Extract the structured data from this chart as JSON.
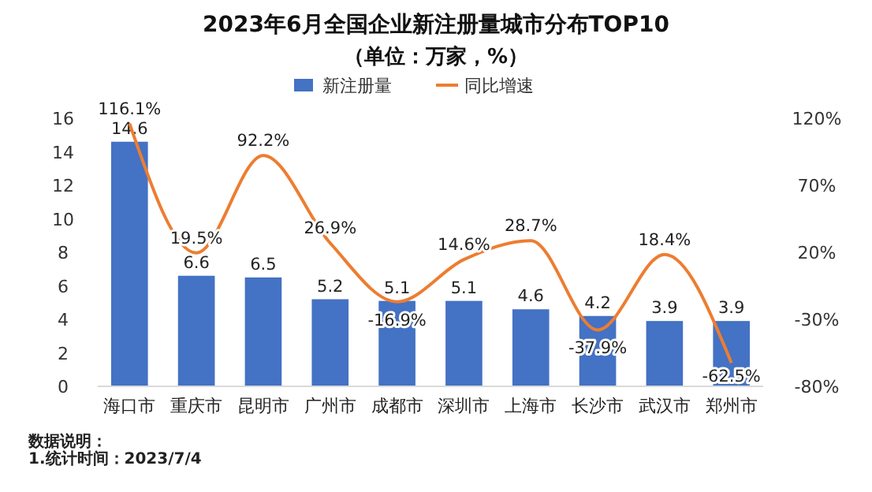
{
  "chart_data": {
    "type": "bar",
    "title": "2023年6月全国企业新注册量城市分布TOP10",
    "subtitle": "（单位：万家，%）",
    "categories": [
      "海口市",
      "重庆市",
      "昆明市",
      "广州市",
      "成都市",
      "深圳市",
      "上海市",
      "长沙市",
      "武汉市",
      "郑州市"
    ],
    "series": [
      {
        "name": "新注册量",
        "color": "#4472c4",
        "values": [
          14.6,
          6.6,
          6.5,
          5.2,
          5.1,
          5.1,
          4.6,
          4.2,
          3.9,
          3.9
        ]
      },
      {
        "name": "同比增速",
        "type": "line",
        "axis": "y2",
        "color": "#ed7d31",
        "values": [
          116.1,
          19.5,
          92.2,
          26.9,
          -16.9,
          14.6,
          28.7,
          -37.9,
          18.4,
          -62.5
        ],
        "value_labels": [
          "116.1%",
          "19.5%",
          "92.2%",
          "26.9%",
          "-16.9%",
          "14.6%",
          "28.7%",
          "-37.9%",
          "18.4%",
          "-62.5%"
        ]
      }
    ],
    "ylim": [
      0,
      16
    ],
    "yticks": [
      0,
      2,
      4,
      6,
      8,
      10,
      12,
      14,
      16
    ],
    "y2lim": [
      -80,
      120
    ],
    "y2ticks": [
      {
        "value": -80,
        "label": "-80%"
      },
      {
        "value": -30,
        "label": "-30%"
      },
      {
        "value": 20,
        "label": "20%"
      },
      {
        "value": 70,
        "label": "70%"
      },
      {
        "value": 120,
        "label": "120%"
      }
    ],
    "data_labels": true,
    "legend": "top",
    "grid": false,
    "marker": "none",
    "annotations": [
      "数据说明：",
      "1.统计时间：2023/7/4"
    ]
  }
}
